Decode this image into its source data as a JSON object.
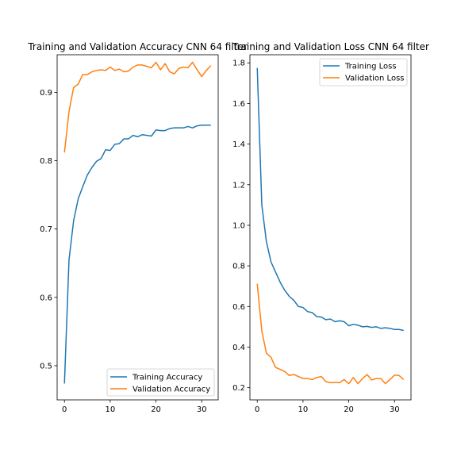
{
  "chart_data": [
    {
      "type": "line",
      "title": "Training and Validation Accuracy CNN 64 filter",
      "xlabel": "",
      "ylabel": "",
      "xlim": [
        -1.6,
        33.6
      ],
      "ylim": [
        0.45,
        0.955
      ],
      "xticks": [
        0,
        10,
        20,
        30
      ],
      "yticks": [
        0.5,
        0.6,
        0.7,
        0.8,
        0.9
      ],
      "ytick_labels": [
        "0.5",
        "0.6",
        "0.7",
        "0.8",
        "0.9"
      ],
      "legend_position": "lower-right",
      "grid": false,
      "x": [
        0,
        1,
        2,
        3,
        4,
        5,
        6,
        7,
        8,
        9,
        10,
        11,
        12,
        13,
        14,
        15,
        16,
        17,
        18,
        19,
        20,
        21,
        22,
        23,
        24,
        25,
        26,
        27,
        28,
        29,
        30,
        31,
        32
      ],
      "series": [
        {
          "name": "Training Accuracy",
          "color": "#1f77b4",
          "values": [
            0.474,
            0.655,
            0.712,
            0.744,
            0.762,
            0.779,
            0.79,
            0.799,
            0.803,
            0.816,
            0.815,
            0.824,
            0.825,
            0.832,
            0.832,
            0.837,
            0.835,
            0.838,
            0.837,
            0.836,
            0.845,
            0.844,
            0.844,
            0.847,
            0.848,
            0.848,
            0.848,
            0.85,
            0.848,
            0.851,
            0.852,
            0.852,
            0.852
          ]
        },
        {
          "name": "Validation Accuracy",
          "color": "#ff7f0e",
          "values": [
            0.812,
            0.872,
            0.907,
            0.912,
            0.926,
            0.926,
            0.93,
            0.932,
            0.933,
            0.932,
            0.937,
            0.932,
            0.934,
            0.93,
            0.931,
            0.937,
            0.94,
            0.94,
            0.938,
            0.936,
            0.944,
            0.933,
            0.942,
            0.93,
            0.927,
            0.935,
            0.937,
            0.936,
            0.944,
            0.933,
            0.923,
            0.932,
            0.939
          ]
        }
      ]
    },
    {
      "type": "line",
      "title": "Training and Validation Loss CNN 64 filter",
      "xlabel": "",
      "ylabel": "",
      "xlim": [
        -1.6,
        33.6
      ],
      "ylim": [
        0.14,
        1.84
      ],
      "xticks": [
        0,
        10,
        20,
        30
      ],
      "yticks": [
        0.2,
        0.4,
        0.6,
        0.8,
        1.0,
        1.2,
        1.4,
        1.6,
        1.8
      ],
      "ytick_labels": [
        "0.2",
        "0.4",
        "0.6",
        "0.8",
        "1.0",
        "1.2",
        "1.4",
        "1.6",
        "1.8"
      ],
      "legend_position": "top-right",
      "grid": false,
      "x": [
        0,
        1,
        2,
        3,
        4,
        5,
        6,
        7,
        8,
        9,
        10,
        11,
        12,
        13,
        14,
        15,
        16,
        17,
        18,
        19,
        20,
        21,
        22,
        23,
        24,
        25,
        26,
        27,
        28,
        29,
        30,
        31,
        32
      ],
      "series": [
        {
          "name": "Training Loss",
          "color": "#1f77b4",
          "values": [
            1.775,
            1.1,
            0.92,
            0.82,
            0.77,
            0.72,
            0.68,
            0.65,
            0.63,
            0.6,
            0.595,
            0.575,
            0.57,
            0.55,
            0.548,
            0.535,
            0.538,
            0.525,
            0.53,
            0.525,
            0.505,
            0.512,
            0.508,
            0.5,
            0.502,
            0.497,
            0.5,
            0.492,
            0.495,
            0.492,
            0.487,
            0.487,
            0.482
          ]
        },
        {
          "name": "Validation Loss",
          "color": "#ff7f0e",
          "values": [
            0.712,
            0.48,
            0.37,
            0.35,
            0.3,
            0.29,
            0.28,
            0.26,
            0.265,
            0.255,
            0.245,
            0.245,
            0.24,
            0.25,
            0.255,
            0.23,
            0.225,
            0.225,
            0.225,
            0.24,
            0.22,
            0.25,
            0.22,
            0.245,
            0.265,
            0.238,
            0.245,
            0.245,
            0.22,
            0.24,
            0.262,
            0.26,
            0.24
          ]
        }
      ]
    }
  ]
}
